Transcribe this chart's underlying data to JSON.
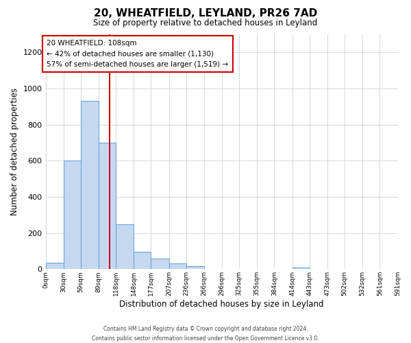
{
  "title": "20, WHEATFIELD, LEYLAND, PR26 7AD",
  "subtitle": "Size of property relative to detached houses in Leyland",
  "xlabel": "Distribution of detached houses by size in Leyland",
  "ylabel": "Number of detached properties",
  "bar_color": "#c5d8f0",
  "bar_edge_color": "#5a9fd4",
  "bins": [
    0,
    30,
    59,
    89,
    118,
    148,
    177,
    207,
    236,
    266,
    296,
    325,
    355,
    384,
    414,
    443,
    473,
    502,
    532,
    561,
    591
  ],
  "bin_labels": [
    "0sqm",
    "30sqm",
    "59sqm",
    "89sqm",
    "118sqm",
    "148sqm",
    "177sqm",
    "207sqm",
    "236sqm",
    "266sqm",
    "296sqm",
    "325sqm",
    "355sqm",
    "384sqm",
    "414sqm",
    "443sqm",
    "473sqm",
    "502sqm",
    "532sqm",
    "561sqm",
    "591sqm"
  ],
  "values": [
    35,
    600,
    930,
    700,
    247,
    95,
    57,
    30,
    17,
    0,
    0,
    0,
    0,
    0,
    10,
    0,
    0,
    0,
    0,
    0
  ],
  "ylim": [
    0,
    1300
  ],
  "yticks": [
    0,
    200,
    400,
    600,
    800,
    1000,
    1200
  ],
  "vline_x": 108,
  "vline_color": "#cc0000",
  "annotation_title": "20 WHEATFIELD: 108sqm",
  "annotation_line1": "← 42% of detached houses are smaller (1,130)",
  "annotation_line2": "57% of semi-detached houses are larger (1,519) →",
  "annotation_box_color": "#ffffff",
  "annotation_box_edge_color": "#cc0000",
  "footer1": "Contains HM Land Registry data © Crown copyright and database right 2024.",
  "footer2": "Contains public sector information licensed under the Open Government Licence v3.0.",
  "background_color": "#ffffff",
  "grid_color": "#d0d0d0"
}
